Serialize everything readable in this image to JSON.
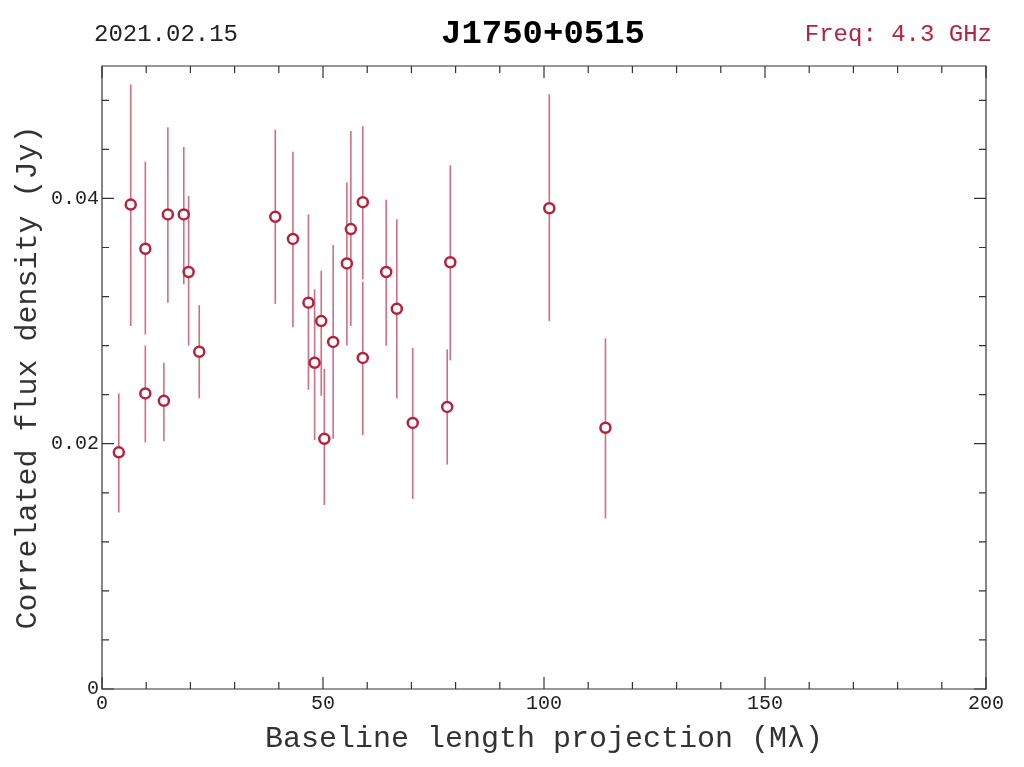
{
  "chart_data": {
    "type": "scatter",
    "title": "J1750+0515",
    "subtitle": "2021.02.15",
    "annotations": [
      "Freq: 4.3 GHz"
    ],
    "xlabel": "Baseline length projection (Mλ)",
    "ylabel": "Correlated flux density (Jy)",
    "xlim": [
      0,
      200
    ],
    "ylim": [
      0,
      0.0508
    ],
    "xticks": [
      0,
      {
        "value": 10,
        "label": null
      },
      {
        "value": 20,
        "label": null
      },
      {
        "value": 30,
        "label": null
      },
      {
        "value": 40,
        "label": null
      },
      50,
      {
        "value": 60,
        "label": null
      },
      {
        "value": 70,
        "label": null
      },
      {
        "value": 80,
        "label": null
      },
      {
        "value": 90,
        "label": null
      },
      100,
      {
        "value": 110,
        "label": null
      },
      {
        "value": 120,
        "label": null
      },
      {
        "value": 130,
        "label": null
      },
      {
        "value": 140,
        "label": null
      },
      150,
      {
        "value": 160,
        "label": null
      },
      {
        "value": 170,
        "label": null
      },
      {
        "value": 180,
        "label": null
      },
      {
        "value": 190,
        "label": null
      },
      200
    ],
    "yticks": [
      0,
      {
        "value": 0.004,
        "label": null
      },
      {
        "value": 0.008,
        "label": null
      },
      {
        "value": 0.012,
        "label": null
      },
      {
        "value": 0.016,
        "label": null
      },
      0.02,
      {
        "value": 0.024,
        "label": null
      },
      {
        "value": 0.028,
        "label": null
      },
      {
        "value": 0.032,
        "label": null
      },
      {
        "value": 0.036,
        "label": null
      },
      0.04,
      {
        "value": 0.044,
        "label": null
      },
      {
        "value": 0.048,
        "label": null
      }
    ],
    "grid": false,
    "legend": false,
    "marker": "circle",
    "series": [
      {
        "color": "#b5223f",
        "x": [
          3.8,
          6.5,
          9.8,
          9.8,
          14.0,
          14.9,
          18.5,
          19.6,
          22.0,
          39.2,
          43.2,
          46.7,
          48.1,
          49.6,
          50.3,
          52.3,
          55.4,
          56.3,
          59.0,
          59.0,
          64.3,
          66.7,
          70.3,
          78.1,
          78.8,
          101.2,
          113.9
        ],
        "values": [
          0.0193,
          0.0395,
          0.0359,
          0.0241,
          0.0235,
          0.0387,
          0.0387,
          0.034,
          0.0275,
          0.0385,
          0.0367,
          0.0315,
          0.0266,
          0.03,
          0.0204,
          0.0283,
          0.0347,
          0.0375,
          0.0397,
          0.027,
          0.034,
          0.031,
          0.0217,
          0.023,
          0.0348,
          0.0392,
          0.0213
        ],
        "errors": [
          [
            0.0144,
            0.0241
          ],
          [
            0.0296,
            0.0493
          ],
          [
            0.0289,
            0.043
          ],
          [
            0.0201,
            0.028
          ],
          [
            0.0202,
            0.0266
          ],
          [
            0.0315,
            0.0458
          ],
          [
            0.033,
            0.0442
          ],
          [
            0.028,
            0.0402
          ],
          [
            0.0237,
            0.0313
          ],
          [
            0.0314,
            0.0456
          ],
          [
            0.0295,
            0.0438
          ],
          [
            0.0244,
            0.0387
          ],
          [
            0.0203,
            0.0326
          ],
          [
            0.0239,
            0.0341
          ],
          [
            0.015,
            0.0261
          ],
          [
            0.0204,
            0.0362
          ],
          [
            0.028,
            0.0413
          ],
          [
            0.0296,
            0.0455
          ],
          [
            0.0334,
            0.0459
          ],
          [
            0.0207,
            0.0332
          ],
          [
            0.028,
            0.0399
          ],
          [
            0.0237,
            0.0383
          ],
          [
            0.0155,
            0.0278
          ],
          [
            0.0183,
            0.0277
          ],
          [
            0.0268,
            0.0427
          ],
          [
            0.03,
            0.0485
          ],
          [
            0.0139,
            0.0286
          ]
        ]
      }
    ]
  }
}
